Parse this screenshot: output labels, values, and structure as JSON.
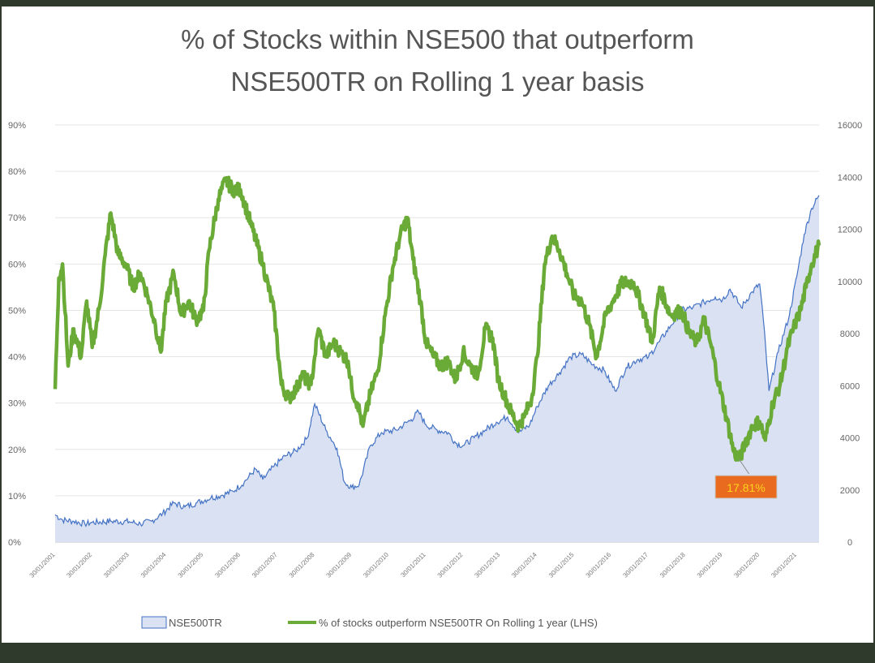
{
  "chart_data": {
    "type": "line",
    "title": "% of Stocks within NSE500 that outperform NSE500TR on Rolling 1 year basis",
    "title_lines": [
      "% of Stocks within NSE500 that outperform",
      "NSE500TR on Rolling 1 year basis"
    ],
    "left_axis": {
      "ticks": [
        "0%",
        "10%",
        "20%",
        "30%",
        "40%",
        "50%",
        "60%",
        "70%",
        "80%",
        "90%"
      ],
      "range": [
        0,
        90
      ]
    },
    "right_axis": {
      "ticks": [
        "0",
        "2000",
        "4000",
        "6000",
        "8000",
        "10000",
        "12000",
        "14000",
        "16000"
      ],
      "range": [
        0,
        16000
      ]
    },
    "x_range": [
      2001.0,
      2021.6
    ],
    "grid": true,
    "legend_position": "bottom",
    "series": [
      {
        "name": "NSE500TR",
        "kind": "area",
        "axis": "right",
        "color": "#4472c4",
        "fill": "#d9e1f2",
        "points": [
          [
            2001.0,
            1050
          ],
          [
            2001.2,
            850
          ],
          [
            2001.5,
            800
          ],
          [
            2001.8,
            700
          ],
          [
            2002.0,
            750
          ],
          [
            2002.5,
            800
          ],
          [
            2003.0,
            780
          ],
          [
            2003.3,
            700
          ],
          [
            2003.6,
            800
          ],
          [
            2003.9,
            1100
          ],
          [
            2004.2,
            1500
          ],
          [
            2004.5,
            1350
          ],
          [
            2004.8,
            1500
          ],
          [
            2005.2,
            1700
          ],
          [
            2005.5,
            1800
          ],
          [
            2005.8,
            1950
          ],
          [
            2006.1,
            2300
          ],
          [
            2006.4,
            2800
          ],
          [
            2006.6,
            2400
          ],
          [
            2006.9,
            2900
          ],
          [
            2007.2,
            3300
          ],
          [
            2007.5,
            3500
          ],
          [
            2007.8,
            4000
          ],
          [
            2008.0,
            5300
          ],
          [
            2008.3,
            4300
          ],
          [
            2008.6,
            3600
          ],
          [
            2008.8,
            2300
          ],
          [
            2009.0,
            2100
          ],
          [
            2009.2,
            2200
          ],
          [
            2009.5,
            3700
          ],
          [
            2009.8,
            4200
          ],
          [
            2010.2,
            4300
          ],
          [
            2010.6,
            4700
          ],
          [
            2010.8,
            5000
          ],
          [
            2011.0,
            4500
          ],
          [
            2011.3,
            4300
          ],
          [
            2011.6,
            4200
          ],
          [
            2011.8,
            3800
          ],
          [
            2012.0,
            3700
          ],
          [
            2012.3,
            4000
          ],
          [
            2012.6,
            4300
          ],
          [
            2012.9,
            4600
          ],
          [
            2013.2,
            4800
          ],
          [
            2013.5,
            4200
          ],
          [
            2013.8,
            4500
          ],
          [
            2014.0,
            5200
          ],
          [
            2014.3,
            6000
          ],
          [
            2014.6,
            6500
          ],
          [
            2014.9,
            7100
          ],
          [
            2015.2,
            7200
          ],
          [
            2015.5,
            6800
          ],
          [
            2015.8,
            6600
          ],
          [
            2016.1,
            5800
          ],
          [
            2016.4,
            6700
          ],
          [
            2016.7,
            7000
          ],
          [
            2017.0,
            7100
          ],
          [
            2017.3,
            7700
          ],
          [
            2017.6,
            8300
          ],
          [
            2017.9,
            8900
          ],
          [
            2018.2,
            9000
          ],
          [
            2018.5,
            9200
          ],
          [
            2018.8,
            9400
          ],
          [
            2019.0,
            9300
          ],
          [
            2019.2,
            9700
          ],
          [
            2019.5,
            9000
          ],
          [
            2019.8,
            9600
          ],
          [
            2020.0,
            9900
          ],
          [
            2020.1,
            8500
          ],
          [
            2020.25,
            5800
          ],
          [
            2020.5,
            7300
          ],
          [
            2020.8,
            8700
          ],
          [
            2021.0,
            10200
          ],
          [
            2021.2,
            11800
          ],
          [
            2021.4,
            12800
          ],
          [
            2021.6,
            13300
          ]
        ]
      },
      {
        "name": "% of stocks outperform NSE500TR On Rolling 1 year (LHS)",
        "kind": "line",
        "axis": "left",
        "color": "#6aaa36",
        "points": [
          [
            2001.0,
            33
          ],
          [
            2001.1,
            57
          ],
          [
            2001.2,
            60
          ],
          [
            2001.35,
            38
          ],
          [
            2001.5,
            46
          ],
          [
            2001.7,
            40
          ],
          [
            2001.85,
            52
          ],
          [
            2002.0,
            42
          ],
          [
            2002.2,
            51
          ],
          [
            2002.35,
            62
          ],
          [
            2002.5,
            71
          ],
          [
            2002.7,
            62
          ],
          [
            2002.9,
            60
          ],
          [
            2003.1,
            55
          ],
          [
            2003.3,
            58
          ],
          [
            2003.5,
            53
          ],
          [
            2003.7,
            47
          ],
          [
            2003.85,
            41
          ],
          [
            2004.0,
            52
          ],
          [
            2004.2,
            58
          ],
          [
            2004.4,
            49
          ],
          [
            2004.6,
            52
          ],
          [
            2004.8,
            48
          ],
          [
            2005.0,
            50
          ],
          [
            2005.15,
            63
          ],
          [
            2005.4,
            74
          ],
          [
            2005.6,
            78
          ],
          [
            2005.8,
            76
          ],
          [
            2006.0,
            76
          ],
          [
            2006.3,
            68
          ],
          [
            2006.6,
            60
          ],
          [
            2006.9,
            50
          ],
          [
            2007.1,
            34
          ],
          [
            2007.3,
            31
          ],
          [
            2007.5,
            33
          ],
          [
            2007.65,
            36
          ],
          [
            2007.9,
            34
          ],
          [
            2008.0,
            40
          ],
          [
            2008.1,
            46
          ],
          [
            2008.3,
            40
          ],
          [
            2008.5,
            43
          ],
          [
            2008.7,
            41
          ],
          [
            2008.9,
            39
          ],
          [
            2009.0,
            33
          ],
          [
            2009.15,
            30
          ],
          [
            2009.3,
            25
          ],
          [
            2009.5,
            32
          ],
          [
            2009.7,
            37
          ],
          [
            2009.9,
            49
          ],
          [
            2010.1,
            59
          ],
          [
            2010.3,
            66
          ],
          [
            2010.5,
            70
          ],
          [
            2010.65,
            61
          ],
          [
            2010.85,
            52
          ],
          [
            2011.0,
            43
          ],
          [
            2011.2,
            40
          ],
          [
            2011.4,
            38
          ],
          [
            2011.6,
            39
          ],
          [
            2011.8,
            35
          ],
          [
            2012.0,
            41
          ],
          [
            2012.2,
            38
          ],
          [
            2012.4,
            36
          ],
          [
            2012.6,
            46
          ],
          [
            2012.8,
            44
          ],
          [
            2012.95,
            35
          ],
          [
            2013.1,
            32
          ],
          [
            2013.3,
            28
          ],
          [
            2013.5,
            25
          ],
          [
            2013.65,
            27
          ],
          [
            2013.85,
            31
          ],
          [
            2014.0,
            40
          ],
          [
            2014.2,
            60
          ],
          [
            2014.4,
            66
          ],
          [
            2014.6,
            63
          ],
          [
            2014.8,
            58
          ],
          [
            2015.0,
            53
          ],
          [
            2015.2,
            52
          ],
          [
            2015.4,
            47
          ],
          [
            2015.6,
            40
          ],
          [
            2015.85,
            49
          ],
          [
            2016.1,
            53
          ],
          [
            2016.3,
            56
          ],
          [
            2016.6,
            56
          ],
          [
            2016.9,
            49
          ],
          [
            2017.1,
            43
          ],
          [
            2017.3,
            55
          ],
          [
            2017.6,
            49
          ],
          [
            2017.9,
            50
          ],
          [
            2018.1,
            45
          ],
          [
            2018.3,
            43
          ],
          [
            2018.5,
            48
          ],
          [
            2018.7,
            42
          ],
          [
            2018.9,
            34
          ],
          [
            2019.1,
            27
          ],
          [
            2019.3,
            19.5
          ],
          [
            2019.45,
            17.81
          ],
          [
            2019.6,
            21
          ],
          [
            2019.8,
            25
          ],
          [
            2020.0,
            26
          ],
          [
            2020.15,
            22
          ],
          [
            2020.35,
            30
          ],
          [
            2020.55,
            34
          ],
          [
            2020.75,
            42
          ],
          [
            2020.95,
            47
          ],
          [
            2021.1,
            50
          ],
          [
            2021.25,
            55
          ],
          [
            2021.4,
            60
          ],
          [
            2021.6,
            64
          ]
        ]
      }
    ],
    "x_tick_labels": [
      "30/01/2001",
      "30/01/2002",
      "30/01/2003",
      "30/01/2004",
      "30/01/2005",
      "30/01/2006",
      "30/01/2007",
      "30/01/2008",
      "30/01/2009",
      "30/01/2010",
      "30/01/2011",
      "30/01/2012",
      "30/01/2013",
      "30/01/2014",
      "30/01/2015",
      "30/01/2016",
      "30/01/2017",
      "30/01/2018",
      "30/01/2019",
      "30/01/2020",
      "30/01/2021"
    ],
    "annotation": {
      "text": "17.81%",
      "x": 2019.45,
      "y": 17.81,
      "background": "#e86b1f",
      "color": "#ffd21f"
    },
    "legend": [
      {
        "label": "NSE500TR"
      },
      {
        "label": "% of stocks outperform NSE500TR On Rolling 1 year (LHS)"
      }
    ]
  }
}
